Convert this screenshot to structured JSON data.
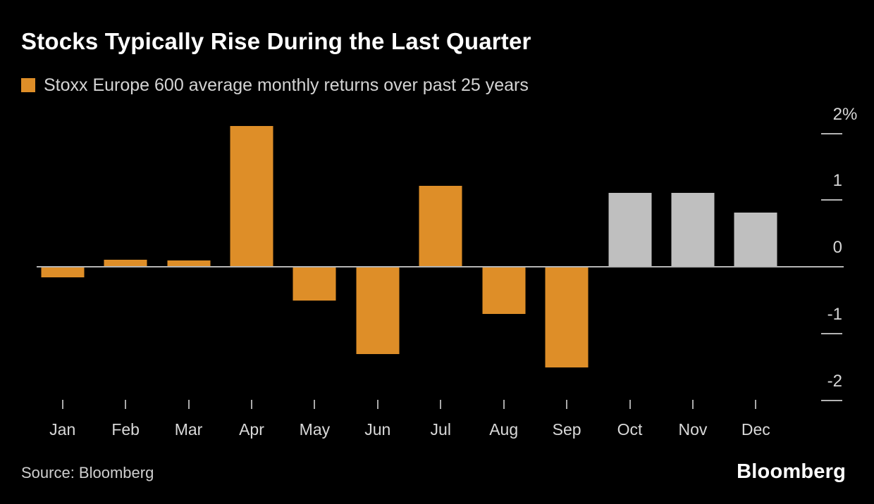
{
  "title": "Stocks Typically Rise During the Last Quarter",
  "legend": {
    "label": "Stoxx Europe 600 average monthly returns over past 25 years",
    "swatch_color": "#DE8E28"
  },
  "source": "Source: Bloomberg",
  "brand": "Bloomberg",
  "colors": {
    "background": "#000000",
    "orange": "#DE8E28",
    "gray": "#BFBFBF",
    "axis": "#B4B4B4",
    "text": "#D6D6D6",
    "title_text": "#FFFFFF"
  },
  "chart_data": {
    "type": "bar",
    "title": "Stocks Typically Rise During the Last Quarter",
    "subtitle": "Stoxx Europe 600 average monthly returns over past 25 years",
    "unit": "%",
    "categories": [
      "Jan",
      "Feb",
      "Mar",
      "Apr",
      "May",
      "Jun",
      "Jul",
      "Aug",
      "Sep",
      "Oct",
      "Nov",
      "Dec"
    ],
    "values": [
      -0.15,
      0.1,
      0.08,
      2.1,
      -0.5,
      -1.3,
      1.2,
      -0.7,
      -1.5,
      1.1,
      1.1,
      0.8
    ],
    "bar_colors": [
      "orange",
      "orange",
      "orange",
      "orange",
      "orange",
      "orange",
      "orange",
      "orange",
      "orange",
      "gray",
      "gray",
      "gray"
    ],
    "xlabel": "",
    "ylabel": "",
    "ylim": [
      -2.4,
      2.4
    ],
    "yticks": [
      {
        "value": 2,
        "label": "2%"
      },
      {
        "value": 1,
        "label": "1"
      },
      {
        "value": 0,
        "label": "0"
      },
      {
        "value": -1,
        "label": "-1"
      },
      {
        "value": -2,
        "label": "-2"
      }
    ],
    "grid": false,
    "legend_position": "top-left",
    "axis_side": "right"
  }
}
